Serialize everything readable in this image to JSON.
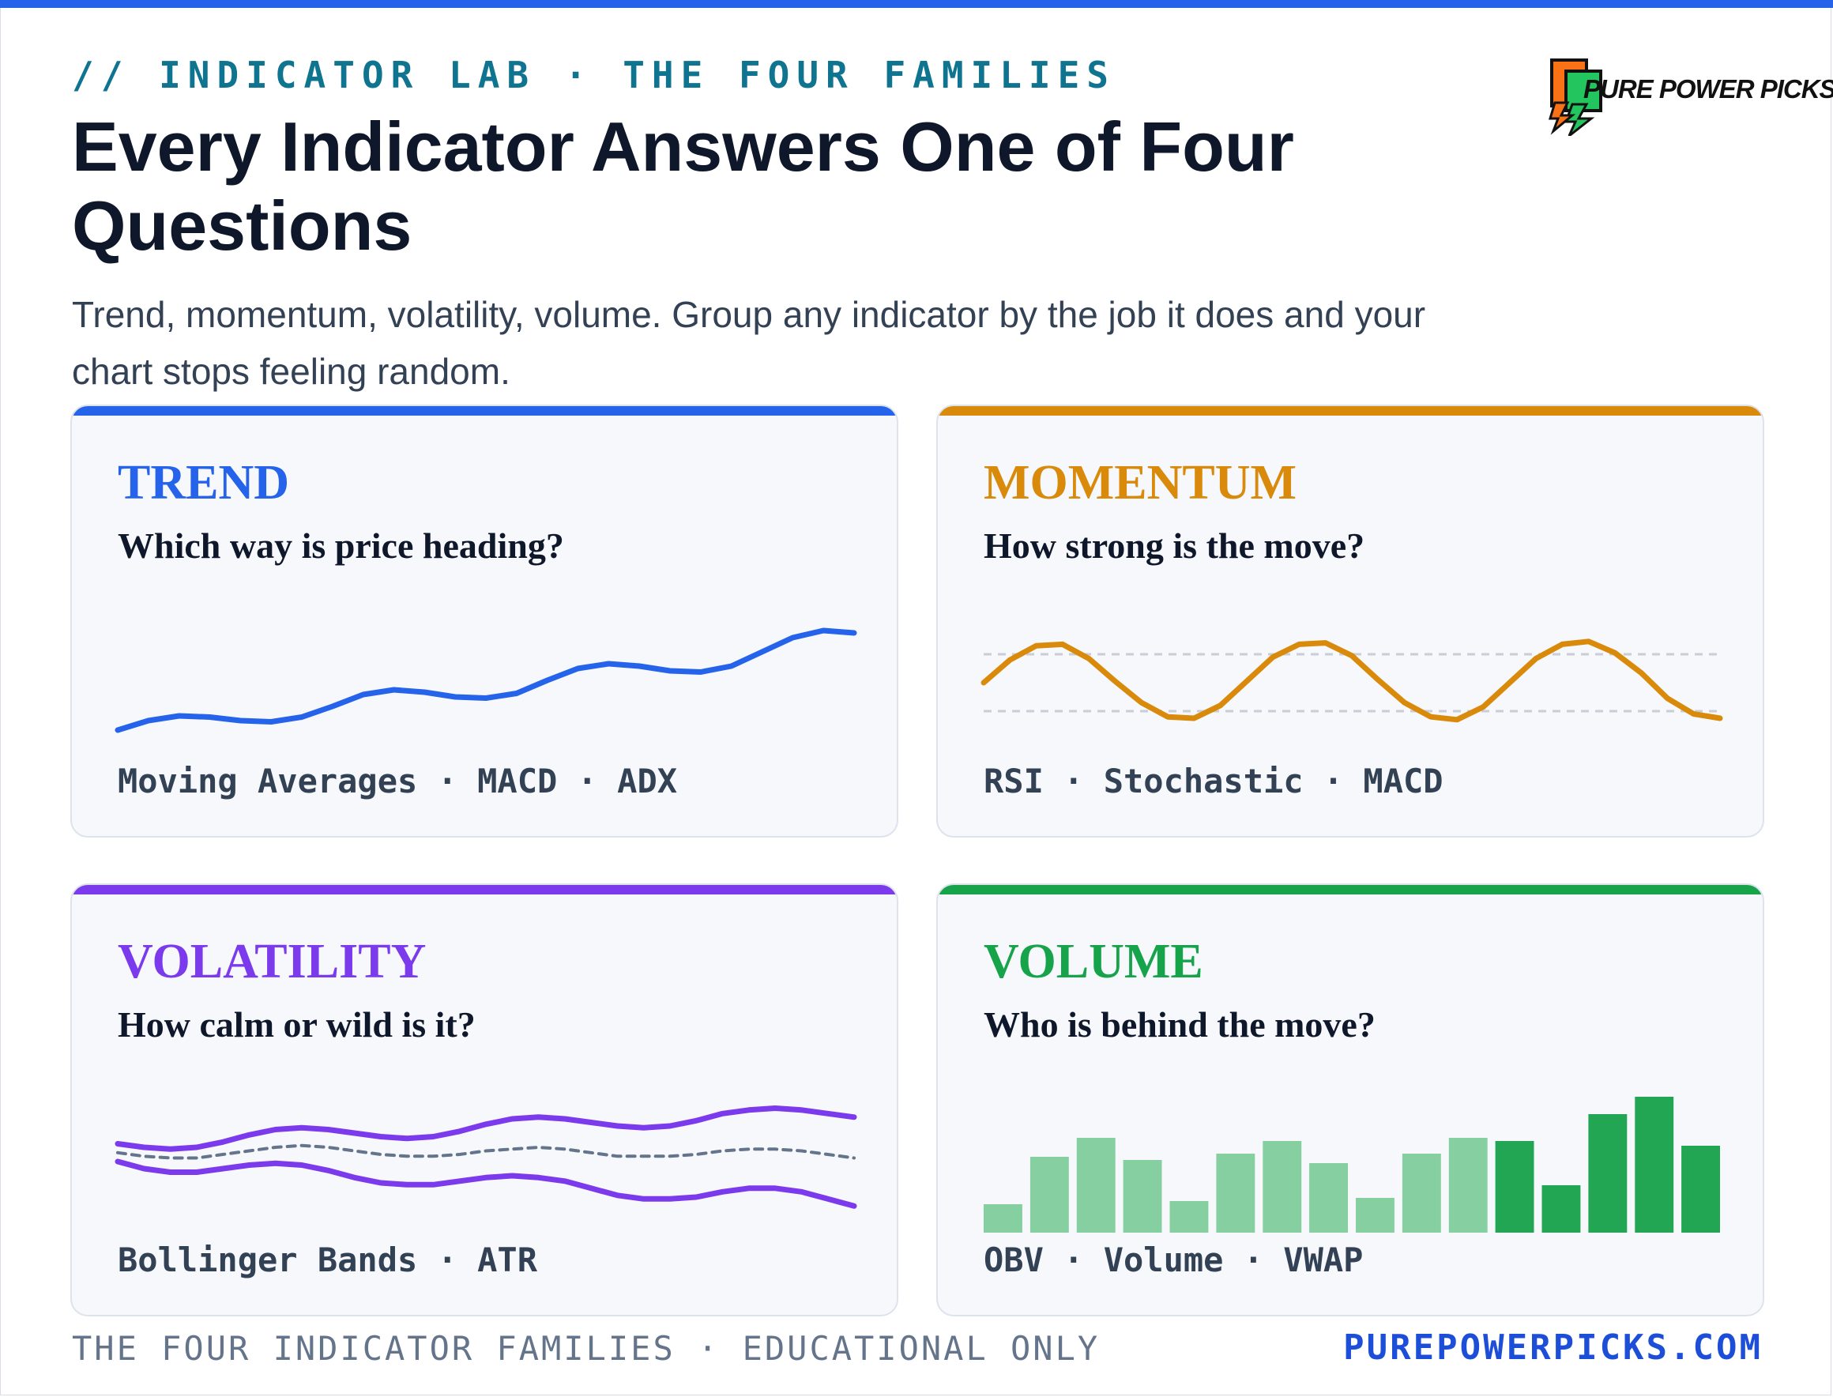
{
  "header": {
    "kicker": "// INDICATOR LAB · THE FOUR FAMILIES",
    "title": "Every Indicator Answers One of Four Questions",
    "subtitle": "Trend, momentum, volatility, volume. Group any indicator by the job it does and your chart stops feeling random."
  },
  "logo": {
    "text": "PURE POWER PICKS",
    "icon": "lightning-bolt-icon"
  },
  "colors": {
    "trend": "#2563eb",
    "momentum": "#d98a0b",
    "volatility": "#7c3aed",
    "volume": "#16a34a",
    "volume_light": "#86cfa0",
    "volume_dark": "#22a653",
    "band_mid": "#64748b",
    "grid": "#c8cdd6"
  },
  "cards": {
    "trend": {
      "title": "TREND",
      "question": "Which way is price heading?",
      "indicators": "Moving Averages · MACD · ADX"
    },
    "momentum": {
      "title": "MOMENTUM",
      "question": "How strong is the move?",
      "indicators": "RSI · Stochastic · MACD"
    },
    "volatility": {
      "title": "VOLATILITY",
      "question": "How calm or wild is it?",
      "indicators": "Bollinger Bands · ATR"
    },
    "volume": {
      "title": "VOLUME",
      "question": "Who is behind the move?",
      "indicators": "OBV · Volume · VWAP"
    }
  },
  "footer": {
    "left": "THE FOUR INDICATOR FAMILIES · EDUCATIONAL ONLY",
    "right": "PUREPOWERPICKS.COM"
  },
  "chart_data": [
    {
      "type": "line",
      "series": [
        {
          "values": [
            10,
            14,
            16,
            15.5,
            14,
            13.5,
            15.5,
            20,
            25,
            27,
            26,
            24,
            23.5,
            25.5,
            31,
            36,
            38,
            37,
            35,
            34.5,
            37,
            43,
            49,
            52,
            51
          ]
        }
      ],
      "ylim": [
        0,
        60
      ]
    },
    {
      "type": "line",
      "series": [
        {
          "values": [
            50,
            66,
            76,
            77,
            67,
            51,
            36,
            26,
            25,
            34,
            51,
            68,
            77,
            78,
            69,
            52,
            36,
            26,
            24,
            33,
            50,
            67,
            77,
            79,
            71,
            57,
            39,
            28,
            25
          ]
        }
      ],
      "reference_lines": [
        70,
        30
      ],
      "ylim": [
        0,
        100
      ]
    },
    {
      "type": "line",
      "series": [
        {
          "values": [
            50,
            48,
            47,
            48,
            51,
            55,
            58,
            59,
            58,
            56,
            54,
            53,
            54,
            57,
            61,
            64,
            65,
            64,
            62,
            60,
            59,
            60,
            63,
            67,
            69,
            70,
            69,
            67,
            65
          ]
        },
        {
          "values": [
            45,
            43,
            42,
            42,
            44,
            46,
            48,
            49,
            48,
            46,
            44,
            43,
            43,
            44,
            46,
            47,
            48,
            47,
            45,
            43,
            43,
            43,
            44,
            46,
            47,
            47,
            46,
            44,
            42
          ]
        },
        {
          "values": [
            40,
            36,
            34,
            34,
            36,
            38,
            39,
            38,
            35,
            31,
            28,
            27,
            27,
            29,
            31,
            32,
            31,
            29,
            25,
            21,
            19,
            19,
            20,
            23,
            25,
            25,
            23,
            19,
            15
          ]
        }
      ],
      "ylim": [
        0,
        80
      ]
    },
    {
      "type": "bar",
      "values": [
        18,
        48,
        60,
        46,
        20,
        50,
        58,
        44,
        22,
        50,
        60,
        58,
        30,
        75,
        86,
        55
      ],
      "highlight_from_index": 11,
      "ylim": [
        0,
        90
      ]
    }
  ]
}
